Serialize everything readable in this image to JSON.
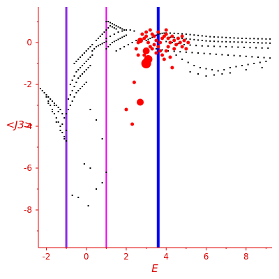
{
  "chart_data": {
    "type": "scatter",
    "title": "",
    "xlabel": "E",
    "ylabel": "<J3>",
    "xlim": [
      -2.4,
      9.3
    ],
    "ylim": [
      -9.8,
      1.7
    ],
    "x_ticks": [
      -2,
      0,
      2,
      4,
      6,
      8
    ],
    "y_ticks": [
      0,
      -2,
      -4,
      -6,
      -8
    ],
    "grid": false,
    "colors": {
      "axis": "#e00000",
      "small_points": "#000000",
      "large_points": "#ff0000",
      "line_purple": "#8a2be2",
      "line_magenta": "#ee00ee",
      "line_blue": "#0000ee"
    },
    "vertical_lines": [
      {
        "x": -1.0,
        "color": "#8a2be2"
      },
      {
        "x": 1.0,
        "color": "#ee00ee"
      },
      {
        "x": 3.6,
        "color": "#0000ee"
      }
    ],
    "series": [
      {
        "color": "#000000",
        "points": [
          [
            -2.3,
            -2.2
          ],
          [
            -2.2,
            -2.3
          ],
          [
            -2.1,
            -2.4
          ],
          [
            -2.0,
            -2.5
          ],
          [
            -1.9,
            -2.6
          ],
          [
            -1.8,
            -2.7
          ],
          [
            -1.7,
            -2.8
          ],
          [
            -1.6,
            -2.9
          ],
          [
            -1.5,
            -3.0
          ],
          [
            -1.4,
            -3.1
          ],
          [
            -1.3,
            -3.2
          ],
          [
            -1.2,
            -3.4
          ],
          [
            -1.1,
            -3.6
          ],
          [
            -2.0,
            -2.6
          ],
          [
            -1.9,
            -2.8
          ],
          [
            -1.8,
            -3.0
          ],
          [
            -1.7,
            -3.2
          ],
          [
            -1.6,
            -3.4
          ],
          [
            -1.5,
            -3.6
          ],
          [
            -1.4,
            -3.8
          ],
          [
            -1.3,
            -4.0
          ],
          [
            -1.2,
            -4.3
          ],
          [
            -1.1,
            -4.5
          ],
          [
            -1.0,
            -4.7
          ],
          [
            -1.9,
            -2.9
          ],
          [
            -1.7,
            -3.3
          ],
          [
            -1.5,
            -3.8
          ],
          [
            -1.3,
            -4.2
          ],
          [
            -1.1,
            -4.6
          ],
          [
            -1.6,
            -3.0
          ],
          [
            -1.4,
            -3.3
          ],
          [
            -1.2,
            -3.9
          ],
          [
            -1.0,
            -4.2
          ],
          [
            -1.0,
            -3.4
          ],
          [
            -0.9,
            -3.2
          ],
          [
            -0.8,
            -3.0
          ],
          [
            -0.7,
            -2.8
          ],
          [
            -0.6,
            -2.6
          ],
          [
            -0.5,
            -2.4
          ],
          [
            -0.4,
            -2.3
          ],
          [
            -0.3,
            -2.2
          ],
          [
            -0.2,
            -2.1
          ],
          [
            -0.1,
            -2.0
          ],
          [
            0.0,
            -1.9
          ],
          [
            -0.9,
            -2.7
          ],
          [
            -0.8,
            -2.5
          ],
          [
            -0.7,
            -2.3
          ],
          [
            -0.6,
            -2.1
          ],
          [
            -0.5,
            -1.9
          ],
          [
            -0.4,
            -1.7
          ],
          [
            -0.3,
            -1.6
          ],
          [
            -0.2,
            -1.5
          ],
          [
            -0.1,
            -1.4
          ],
          [
            0.0,
            -1.3
          ],
          [
            0.1,
            -1.2
          ],
          [
            0.2,
            -1.1
          ],
          [
            -0.8,
            -2.0
          ],
          [
            -0.7,
            -1.8
          ],
          [
            -0.6,
            -1.6
          ],
          [
            -0.5,
            -1.4
          ],
          [
            -0.4,
            -1.3
          ],
          [
            -0.3,
            -1.2
          ],
          [
            -0.2,
            -1.1
          ],
          [
            -0.1,
            -1.0
          ],
          [
            0.0,
            -0.9
          ],
          [
            0.1,
            -0.8
          ],
          [
            0.2,
            -0.7
          ],
          [
            0.3,
            -0.6
          ],
          [
            -0.6,
            -1.0
          ],
          [
            -0.5,
            -0.9
          ],
          [
            -0.4,
            -0.8
          ],
          [
            -0.3,
            -0.7
          ],
          [
            -0.2,
            -0.6
          ],
          [
            -0.1,
            -0.5
          ],
          [
            0.0,
            -0.4
          ],
          [
            0.1,
            -0.3
          ],
          [
            0.2,
            -0.2
          ],
          [
            0.3,
            -0.1
          ],
          [
            0.3,
            -0.4
          ],
          [
            0.4,
            -0.3
          ],
          [
            0.5,
            -0.2
          ],
          [
            0.6,
            -0.15
          ],
          [
            0.7,
            -0.1
          ],
          [
            0.8,
            -0.05
          ],
          [
            0.9,
            0.0
          ],
          [
            1.0,
            0.05
          ],
          [
            0.5,
            0.1
          ],
          [
            0.6,
            0.2
          ],
          [
            0.7,
            0.3
          ],
          [
            0.8,
            0.4
          ],
          [
            0.9,
            0.5
          ],
          [
            1.0,
            0.6
          ],
          [
            1.1,
            0.7
          ],
          [
            1.2,
            0.8
          ],
          [
            1.3,
            0.75
          ],
          [
            1.4,
            0.7
          ],
          [
            1.5,
            0.65
          ],
          [
            1.0,
            1.0
          ],
          [
            1.1,
            1.0
          ],
          [
            1.2,
            0.95
          ],
          [
            1.3,
            0.9
          ],
          [
            1.4,
            0.85
          ],
          [
            1.5,
            0.8
          ],
          [
            1.6,
            0.75
          ],
          [
            1.7,
            0.7
          ],
          [
            1.8,
            0.65
          ],
          [
            1.9,
            0.6
          ],
          [
            1.0,
            -0.3
          ],
          [
            1.1,
            -0.2
          ],
          [
            1.2,
            -0.1
          ],
          [
            1.3,
            0.0
          ],
          [
            1.4,
            0.05
          ],
          [
            1.5,
            0.1
          ],
          [
            1.6,
            0.15
          ],
          [
            1.7,
            0.2
          ],
          [
            1.8,
            0.25
          ],
          [
            1.9,
            0.3
          ],
          [
            2.0,
            0.35
          ],
          [
            1.0,
            0.2
          ],
          [
            1.2,
            0.3
          ],
          [
            1.4,
            0.4
          ],
          [
            1.6,
            0.5
          ],
          [
            1.8,
            0.55
          ],
          [
            2.0,
            0.6
          ],
          [
            2.2,
            0.6
          ],
          [
            2.4,
            0.55
          ],
          [
            1.5,
            -0.4
          ],
          [
            1.7,
            -0.3
          ],
          [
            1.9,
            -0.2
          ],
          [
            2.1,
            -0.1
          ],
          [
            2.3,
            0.0
          ],
          [
            2.5,
            0.1
          ],
          [
            2.7,
            0.2
          ],
          [
            0.2,
            -3.2
          ],
          [
            0.5,
            -3.7
          ],
          [
            0.8,
            -4.6
          ],
          [
            -0.1,
            -5.8
          ],
          [
            0.2,
            -6.0
          ],
          [
            0.8,
            -6.7
          ],
          [
            1.0,
            -6.2
          ],
          [
            -0.7,
            -7.3
          ],
          [
            -0.4,
            -7.4
          ],
          [
            0.1,
            -7.8
          ],
          [
            0.5,
            -7.0
          ],
          [
            3.0,
            0.1
          ],
          [
            3.1,
            0.15
          ],
          [
            3.2,
            0.2
          ],
          [
            3.3,
            0.25
          ],
          [
            3.4,
            0.3
          ],
          [
            3.5,
            0.35
          ],
          [
            3.6,
            0.4
          ],
          [
            3.7,
            0.42
          ],
          [
            3.8,
            0.44
          ],
          [
            3.9,
            0.45
          ],
          [
            4.0,
            0.46
          ],
          [
            4.2,
            0.45
          ],
          [
            4.4,
            0.44
          ],
          [
            4.6,
            0.43
          ],
          [
            4.8,
            0.42
          ],
          [
            5.0,
            0.4
          ],
          [
            5.2,
            0.38
          ],
          [
            5.4,
            0.36
          ],
          [
            5.6,
            0.34
          ],
          [
            5.8,
            0.32
          ],
          [
            6.0,
            0.3
          ],
          [
            6.2,
            0.28
          ],
          [
            6.4,
            0.27
          ],
          [
            6.6,
            0.26
          ],
          [
            6.8,
            0.25
          ],
          [
            7.0,
            0.24
          ],
          [
            7.2,
            0.23
          ],
          [
            7.4,
            0.22
          ],
          [
            7.6,
            0.21
          ],
          [
            7.8,
            0.2
          ],
          [
            8.0,
            0.2
          ],
          [
            8.2,
            0.19
          ],
          [
            8.4,
            0.19
          ],
          [
            8.6,
            0.18
          ],
          [
            8.8,
            0.18
          ],
          [
            9.0,
            0.17
          ],
          [
            9.2,
            0.17
          ],
          [
            4.2,
            0.25
          ],
          [
            4.4,
            0.24
          ],
          [
            4.6,
            0.22
          ],
          [
            4.8,
            0.2
          ],
          [
            5.0,
            0.18
          ],
          [
            5.2,
            0.16
          ],
          [
            5.4,
            0.14
          ],
          [
            5.6,
            0.12
          ],
          [
            5.8,
            0.1
          ],
          [
            6.0,
            0.08
          ],
          [
            6.2,
            0.07
          ],
          [
            6.4,
            0.06
          ],
          [
            6.6,
            0.05
          ],
          [
            6.8,
            0.04
          ],
          [
            7.0,
            0.04
          ],
          [
            7.2,
            0.03
          ],
          [
            7.4,
            0.03
          ],
          [
            7.6,
            0.02
          ],
          [
            7.8,
            0.02
          ],
          [
            8.0,
            0.01
          ],
          [
            8.2,
            0.0
          ],
          [
            8.4,
            0.0
          ],
          [
            8.6,
            -0.01
          ],
          [
            8.8,
            -0.02
          ],
          [
            9.0,
            -0.02
          ],
          [
            9.2,
            -0.03
          ],
          [
            4.0,
            0.05
          ],
          [
            4.3,
            0.0
          ],
          [
            4.6,
            -0.05
          ],
          [
            4.9,
            -0.1
          ],
          [
            5.2,
            -0.12
          ],
          [
            5.5,
            -0.14
          ],
          [
            5.8,
            -0.16
          ],
          [
            6.1,
            -0.17
          ],
          [
            6.4,
            -0.18
          ],
          [
            6.7,
            -0.19
          ],
          [
            7.0,
            -0.2
          ],
          [
            7.3,
            -0.21
          ],
          [
            7.6,
            -0.22
          ],
          [
            7.9,
            -0.23
          ],
          [
            8.2,
            -0.24
          ],
          [
            8.5,
            -0.25
          ],
          [
            8.8,
            -0.26
          ],
          [
            9.1,
            -0.27
          ],
          [
            3.5,
            -0.3
          ],
          [
            3.8,
            -0.35
          ],
          [
            4.1,
            -0.4
          ],
          [
            4.4,
            -0.42
          ],
          [
            4.7,
            -0.44
          ],
          [
            5.0,
            -0.46
          ],
          [
            5.3,
            -0.48
          ],
          [
            5.6,
            -0.5
          ],
          [
            5.9,
            -0.52
          ],
          [
            6.2,
            -0.54
          ],
          [
            6.5,
            -0.56
          ],
          [
            6.8,
            -0.58
          ],
          [
            7.1,
            -0.6
          ],
          [
            7.4,
            -0.62
          ],
          [
            7.7,
            -0.64
          ],
          [
            8.0,
            -0.66
          ],
          [
            8.3,
            -0.68
          ],
          [
            8.6,
            -0.7
          ],
          [
            8.9,
            -0.72
          ],
          [
            9.2,
            -0.74
          ],
          [
            4.5,
            -0.6
          ],
          [
            4.8,
            -0.8
          ],
          [
            5.1,
            -0.95
          ],
          [
            5.4,
            -1.1
          ],
          [
            5.7,
            -1.2
          ],
          [
            6.0,
            -1.25
          ],
          [
            6.3,
            -1.3
          ],
          [
            6.6,
            -1.35
          ],
          [
            6.9,
            -1.3
          ],
          [
            7.2,
            -1.2
          ],
          [
            7.5,
            -1.15
          ],
          [
            7.8,
            -1.1
          ],
          [
            8.1,
            -1.05
          ],
          [
            8.4,
            -1.0
          ],
          [
            8.7,
            -0.95
          ],
          [
            9.0,
            -0.9
          ],
          [
            5.2,
            -1.4
          ],
          [
            5.6,
            -1.5
          ],
          [
            6.0,
            -1.6
          ],
          [
            6.4,
            -1.55
          ],
          [
            6.8,
            -1.5
          ],
          [
            7.2,
            -1.45
          ],
          [
            8.0,
            -1.3
          ],
          [
            8.8,
            -1.2
          ]
        ]
      },
      {
        "color": "#ff0000",
        "points": [
          [
            2.8,
            0.4
          ],
          [
            2.9,
            0.2
          ],
          [
            2.7,
            0.1
          ],
          [
            3.0,
            0.3
          ],
          [
            3.1,
            0.0
          ],
          [
            3.2,
            -0.2
          ],
          [
            3.0,
            -0.4
          ],
          [
            2.9,
            -0.6
          ],
          [
            3.1,
            -0.8
          ],
          [
            3.0,
            -1.0
          ],
          [
            3.3,
            0.4
          ],
          [
            3.4,
            0.3
          ],
          [
            3.5,
            0.1
          ],
          [
            3.4,
            -0.1
          ],
          [
            3.3,
            -0.3
          ],
          [
            3.5,
            -0.5
          ],
          [
            3.6,
            -0.2
          ],
          [
            3.7,
            0.0
          ],
          [
            3.8,
            0.2
          ],
          [
            3.9,
            0.3
          ],
          [
            4.0,
            0.4
          ],
          [
            4.1,
            0.2
          ],
          [
            4.2,
            0.0
          ],
          [
            4.1,
            -0.2
          ],
          [
            4.0,
            -0.4
          ],
          [
            4.3,
            0.3
          ],
          [
            4.4,
            0.1
          ],
          [
            4.5,
            -0.1
          ],
          [
            4.6,
            0.2
          ],
          [
            4.7,
            0.0
          ],
          [
            4.8,
            -0.2
          ],
          [
            4.9,
            0.1
          ],
          [
            5.0,
            -0.3
          ],
          [
            5.1,
            0.0
          ],
          [
            3.8,
            -0.6
          ],
          [
            4.2,
            -0.7
          ],
          [
            4.4,
            -0.3
          ],
          [
            3.6,
            0.5
          ],
          [
            4.0,
            0.6
          ],
          [
            3.2,
            0.6
          ],
          [
            2.6,
            0.0
          ],
          [
            2.5,
            -0.3
          ],
          [
            2.6,
            -0.6
          ],
          [
            3.0,
            0.5
          ],
          [
            3.7,
            -0.4
          ],
          [
            4.8,
            0.3
          ],
          [
            3.9,
            -0.8
          ],
          [
            4.3,
            -1.2
          ],
          [
            2.4,
            -1.9
          ],
          [
            2.0,
            -3.2
          ],
          [
            2.3,
            -3.9
          ],
          [
            2.7,
            -2.85
          ]
        ]
      }
    ]
  }
}
